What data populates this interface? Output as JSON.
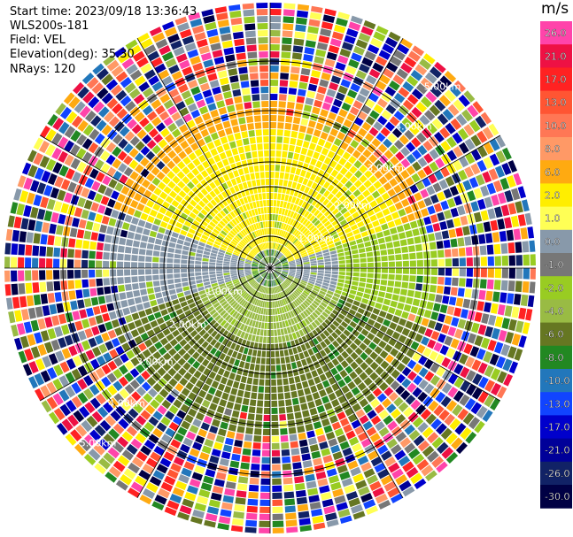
{
  "header": {
    "start_time": "Start time: 2023/09/18 13:36:43",
    "instrument": "WLS200s-181",
    "field": "Field: VEL",
    "elevation": "Elevation(deg): 35.30",
    "nrays": "NRays: 120"
  },
  "ppi": {
    "range_rings": [
      "1.00km",
      "2.00km",
      "3.00km",
      "4.00km",
      "5.00km"
    ],
    "background": "#ffffff",
    "ring_color": "#000000"
  },
  "colorbar": {
    "unit": "m/s",
    "ticks": [
      "26.0",
      "21.0",
      "17.0",
      "13.0",
      "10.0",
      "8.0",
      "6.0",
      "2.0",
      "1.0",
      "0.0",
      "-1.0",
      "-2.0",
      "-4.0",
      "-6.0",
      "-8.0",
      "-10.0",
      "-13.0",
      "-17.0",
      "-21.0",
      "-26.0",
      "-30.0"
    ],
    "colors": [
      "#ff44aa",
      "#ee1144",
      "#ff2222",
      "#ff5533",
      "#ff7755",
      "#ff9966",
      "#ffaa11",
      "#ffee00",
      "#ffff55",
      "#8899aa",
      "#777777",
      "#99cc22",
      "#99bb44",
      "#667722",
      "#228822",
      "#2277bb",
      "#1144ff",
      "#0000cc",
      "#000099",
      "#112266",
      "#000044"
    ]
  }
}
